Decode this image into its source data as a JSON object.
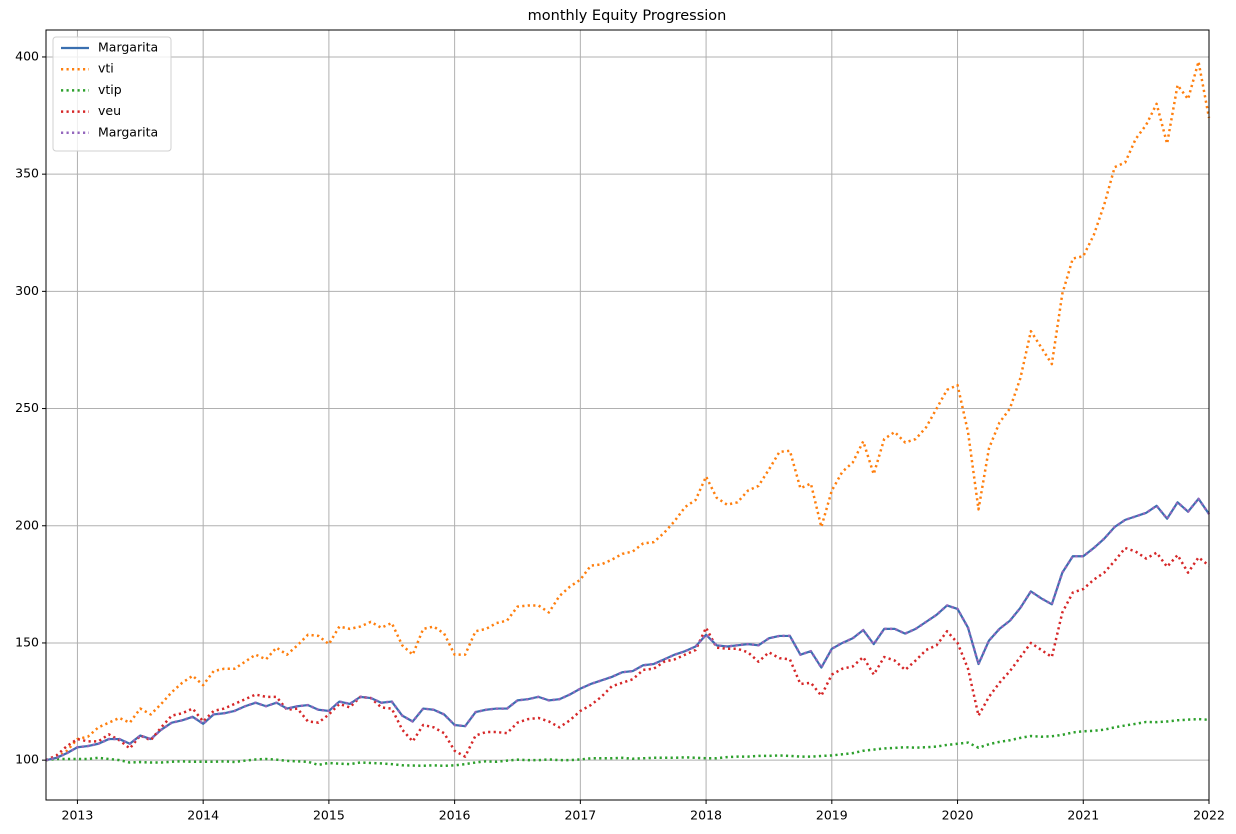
{
  "chart_data": {
    "type": "line",
    "title": "monthly Equity Progression",
    "x": [
      "2012-10",
      "2012-11",
      "2012-12",
      "2013-01",
      "2013-02",
      "2013-03",
      "2013-04",
      "2013-05",
      "2013-06",
      "2013-07",
      "2013-08",
      "2013-09",
      "2013-10",
      "2013-11",
      "2013-12",
      "2014-01",
      "2014-02",
      "2014-03",
      "2014-04",
      "2014-05",
      "2014-06",
      "2014-07",
      "2014-08",
      "2014-09",
      "2014-10",
      "2014-11",
      "2014-12",
      "2015-01",
      "2015-02",
      "2015-03",
      "2015-04",
      "2015-05",
      "2015-06",
      "2015-07",
      "2015-08",
      "2015-09",
      "2015-10",
      "2015-11",
      "2015-12",
      "2016-01",
      "2016-02",
      "2016-03",
      "2016-04",
      "2016-05",
      "2016-06",
      "2016-07",
      "2016-08",
      "2016-09",
      "2016-10",
      "2016-11",
      "2016-12",
      "2017-01",
      "2017-02",
      "2017-03",
      "2017-04",
      "2017-05",
      "2017-06",
      "2017-07",
      "2017-08",
      "2017-09",
      "2017-10",
      "2017-11",
      "2017-12",
      "2018-01",
      "2018-02",
      "2018-03",
      "2018-04",
      "2018-05",
      "2018-06",
      "2018-07",
      "2018-08",
      "2018-09",
      "2018-10",
      "2018-11",
      "2018-12",
      "2019-01",
      "2019-02",
      "2019-03",
      "2019-04",
      "2019-05",
      "2019-06",
      "2019-07",
      "2019-08",
      "2019-09",
      "2019-10",
      "2019-11",
      "2019-12",
      "2020-01",
      "2020-02",
      "2020-03",
      "2020-04",
      "2020-05",
      "2020-06",
      "2020-07",
      "2020-08",
      "2020-09",
      "2020-10",
      "2020-11",
      "2020-12",
      "2021-01",
      "2021-02",
      "2021-03",
      "2021-04",
      "2021-05",
      "2021-06",
      "2021-07",
      "2021-08",
      "2021-09",
      "2021-10",
      "2021-11",
      "2021-12",
      "2022-01"
    ],
    "series": [
      {
        "name": "Margarita",
        "color": "#3a6fb0",
        "linestyle": "solid",
        "values": [
          100,
          101,
          103,
          105.5,
          106,
          107,
          109,
          109,
          107,
          110.5,
          109,
          113,
          116,
          117,
          118.5,
          115.5,
          119.5,
          120,
          121,
          123,
          124.5,
          123,
          124.5,
          122,
          123,
          123.5,
          121.5,
          121,
          125,
          124,
          127,
          126.5,
          124.5,
          125,
          119,
          116.5,
          122,
          121.5,
          119.5,
          115,
          114.5,
          120.5,
          121.5,
          122,
          122,
          125.5,
          126,
          127,
          125.5,
          126,
          128,
          130.5,
          132.5,
          134,
          135.5,
          137.5,
          138,
          140.5,
          141,
          143,
          145,
          146.5,
          148.5,
          153.5,
          149,
          148.5,
          149,
          149.5,
          149,
          152,
          153,
          153,
          145,
          146.5,
          139.5,
          147.5,
          150,
          152,
          155.5,
          149.5,
          156,
          156,
          154,
          156,
          159,
          162,
          166,
          164.5,
          156.5,
          141,
          151,
          156,
          159.5,
          165,
          172,
          169,
          166.5,
          180,
          187,
          187,
          190.5,
          194.5,
          199.5,
          202.5,
          204,
          205.5,
          208.5,
          203,
          210,
          206,
          211.5,
          205
        ]
      },
      {
        "name": "vti",
        "color": "#ff7f0e",
        "linestyle": "dotted",
        "values": [
          100,
          101,
          104,
          109,
          110,
          114,
          116,
          118,
          116,
          122,
          119.5,
          124,
          129,
          133,
          136,
          132,
          138,
          139,
          139,
          142,
          145,
          143,
          148,
          145,
          149,
          153.5,
          153,
          149.5,
          157,
          156,
          157,
          159,
          156.5,
          158.5,
          149,
          145,
          156,
          157,
          154,
          145,
          145,
          155,
          156,
          158.5,
          159.5,
          165.5,
          166,
          166,
          163,
          170,
          174,
          177,
          183,
          183.5,
          185.5,
          188,
          189,
          192.5,
          193,
          197,
          202,
          208,
          211,
          221,
          212,
          209,
          210,
          215,
          217,
          224,
          231.5,
          232,
          216,
          218,
          199.5,
          215,
          223,
          227,
          236,
          222,
          237,
          240,
          235.5,
          237,
          242,
          250,
          258,
          260,
          240,
          207,
          233,
          244,
          250,
          263,
          283,
          276,
          269,
          299,
          314,
          315,
          324,
          337,
          353,
          355,
          365,
          371,
          380,
          363,
          388,
          382,
          398,
          374
        ]
      },
      {
        "name": "vtip",
        "color": "#2ca02c",
        "linestyle": "dotted",
        "values": [
          100,
          100.5,
          100.5,
          100.5,
          100.5,
          101,
          100.5,
          100,
          99,
          99.2,
          99,
          99,
          99.3,
          99.5,
          99.3,
          99.3,
          99.3,
          99.5,
          99.2,
          99.8,
          100.3,
          100.5,
          100.2,
          99.7,
          99.5,
          99.3,
          98,
          98.8,
          98.5,
          98.3,
          99,
          98.8,
          98.6,
          98.3,
          97.8,
          97.7,
          97.6,
          97.8,
          97.6,
          97.8,
          98.3,
          99,
          99.5,
          99.3,
          99.8,
          100.2,
          100,
          100,
          100.3,
          100,
          100,
          100.3,
          100.8,
          100.8,
          100.8,
          101,
          100.6,
          100.8,
          101,
          101,
          101,
          101.2,
          101,
          100.8,
          100.8,
          101.3,
          101.5,
          101.5,
          101.8,
          101.8,
          102,
          101.8,
          101.5,
          101.5,
          101.8,
          102,
          102.5,
          103,
          104,
          104.5,
          105,
          105.2,
          105.5,
          105.3,
          105.5,
          105.8,
          106.5,
          107,
          107.5,
          105.3,
          106.8,
          107.8,
          108.5,
          109.5,
          110.3,
          110,
          110.2,
          110.8,
          111.8,
          112.3,
          112.5,
          113,
          114,
          114.8,
          115.5,
          116.3,
          116.2,
          116.5,
          117,
          117.3,
          117.5,
          117.2
        ]
      },
      {
        "name": "veu",
        "color": "#d62728",
        "linestyle": "dotted",
        "values": [
          100,
          102,
          106,
          109,
          108,
          108,
          111,
          108.5,
          105,
          110.5,
          108.5,
          114,
          119,
          120,
          122,
          116.5,
          121,
          122,
          124,
          126,
          128,
          127,
          127,
          121.5,
          122,
          116.5,
          116,
          119.5,
          124,
          122.5,
          127,
          126.5,
          122.5,
          122,
          113,
          108,
          115,
          114,
          111.5,
          104,
          101.5,
          110.5,
          112,
          112,
          111.5,
          116,
          117.5,
          118,
          116.5,
          114,
          117,
          121,
          123.5,
          127,
          131.5,
          133,
          134.5,
          138.5,
          139,
          142,
          143,
          145,
          147,
          156.5,
          148,
          147.5,
          147.5,
          146,
          142,
          146,
          143.5,
          143,
          132.5,
          133,
          127.5,
          136.5,
          139,
          140,
          144,
          136.5,
          144,
          142.5,
          138.5,
          142.5,
          147,
          149,
          155,
          150,
          139,
          119,
          127,
          133,
          138,
          144,
          150,
          147,
          144,
          163,
          171.5,
          173,
          177,
          180,
          185,
          190.5,
          189,
          186,
          188.5,
          182.5,
          187.5,
          180,
          186.5,
          183
        ]
      },
      {
        "name": "Margarita",
        "color": "#9467bd",
        "linestyle": "dotted",
        "values": [
          100,
          101,
          103,
          105.5,
          106,
          107,
          109,
          109,
          107,
          110.5,
          109,
          113,
          116,
          117,
          118.5,
          115.5,
          119.5,
          120,
          121,
          123,
          124.5,
          123,
          124.5,
          122,
          123,
          123.5,
          121.5,
          121,
          125,
          124,
          127,
          126.5,
          124.5,
          125,
          119,
          116.5,
          122,
          121.5,
          119.5,
          115,
          114.5,
          120.5,
          121.5,
          122,
          122,
          125.5,
          126,
          127,
          125.5,
          126,
          128,
          130.5,
          132.5,
          134,
          135.5,
          137.5,
          138,
          140.5,
          141,
          143,
          145,
          146.5,
          148.5,
          153.5,
          149,
          148.5,
          149,
          149.5,
          149,
          152,
          153,
          153,
          145,
          146.5,
          139.5,
          147.5,
          150,
          152,
          155.5,
          149.5,
          156,
          156,
          154,
          156,
          159,
          162,
          166,
          164.5,
          156.5,
          141,
          151,
          156,
          159.5,
          165,
          172,
          169,
          166.5,
          180,
          187,
          187,
          190.5,
          194.5,
          199.5,
          202.5,
          204,
          205.5,
          208.5,
          203,
          210,
          206,
          211.5,
          205
        ]
      }
    ],
    "xlim": [
      "2012-10",
      "2022-01"
    ],
    "xticks": [
      "2013",
      "2014",
      "2015",
      "2016",
      "2017",
      "2018",
      "2019",
      "2020",
      "2021",
      "2022"
    ],
    "ylim": [
      83,
      411.5
    ],
    "yticks": [
      100,
      150,
      200,
      250,
      300,
      350,
      400
    ],
    "grid": true,
    "legend": "upper left"
  }
}
